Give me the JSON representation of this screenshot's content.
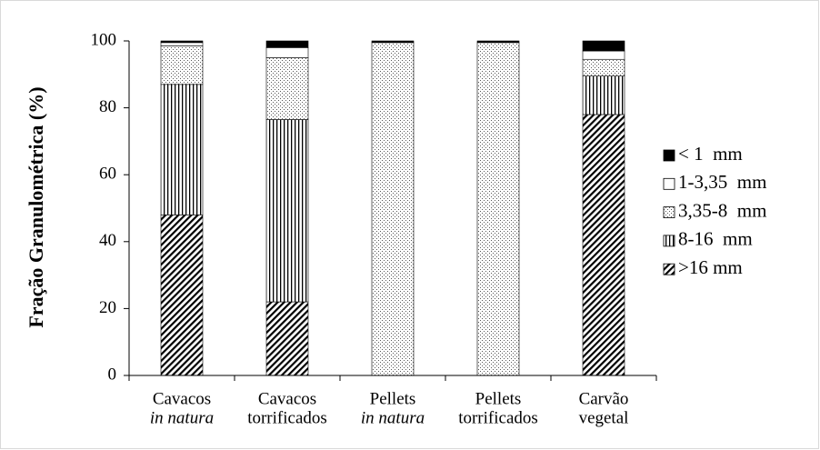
{
  "chart_data": {
    "type": "stacked-bar",
    "y_label": "Fração Granulométrica (%)",
    "categories": [
      [
        "Cavacos",
        "in natura"
      ],
      [
        "Cavacos",
        "torrificados"
      ],
      [
        "Pellets",
        "in natura"
      ],
      [
        "Pellets",
        "torrificados"
      ],
      [
        "Carvão",
        "vegetal"
      ]
    ],
    "series": [
      {
        "name": ">16 mm",
        "color": "#000000",
        "hatch": "diagonal",
        "values": [
          48,
          22,
          0,
          0,
          78
        ]
      },
      {
        "name": "8-16  mm",
        "color": "#000000",
        "hatch": "vertical",
        "values": [
          39,
          54.5,
          0,
          0,
          11.5
        ]
      },
      {
        "name": "3,35-8  mm",
        "color": "#000000",
        "hatch": "dots",
        "values": [
          11.5,
          18.5,
          99.5,
          99.5,
          5
        ]
      },
      {
        "name": "1-3,35  mm",
        "color": "#ffffff",
        "hatch": "none",
        "values": [
          1,
          3,
          0,
          0,
          2.5
        ]
      },
      {
        "name": "< 1  mm",
        "color": "#000000",
        "hatch": "none",
        "values": [
          0.5,
          2,
          0.5,
          0.5,
          3
        ]
      }
    ],
    "ylim": [
      0,
      100
    ],
    "yticks": [
      0,
      20,
      40,
      60,
      80,
      100
    ],
    "legend": "right"
  }
}
